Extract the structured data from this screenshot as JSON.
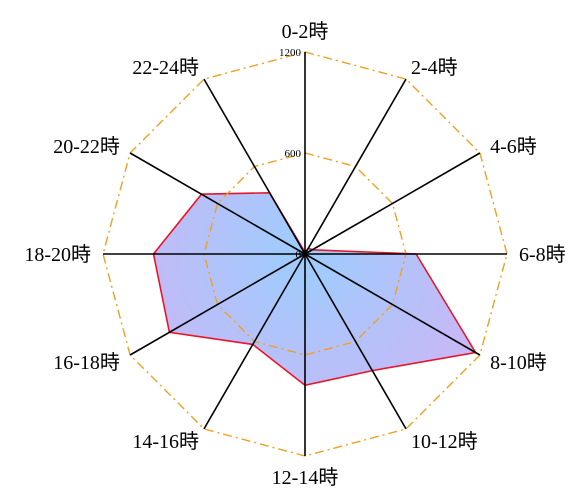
{
  "chart_data": {
    "type": "radar",
    "categories": [
      "0-2時",
      "2-4時",
      "4-6時",
      "6-8時",
      "8-10時",
      "10-12時",
      "12-14時",
      "14-16時",
      "16-18時",
      "18-20時",
      "20-22時",
      "22-24時"
    ],
    "series": [
      {
        "values": [
          10,
          40,
          50,
          660,
          1170,
          800,
          780,
          620,
          930,
          900,
          710,
          420
        ],
        "line_color": "#e8162a",
        "fill_center_color": "#9ccdfd",
        "fill_edge_color": "#c8b8f6"
      }
    ],
    "r_range": [
      0,
      1200
    ],
    "r_ticks": [
      {
        "value": 0,
        "label": "0"
      },
      {
        "value": 600,
        "label": "600"
      },
      {
        "value": 1200,
        "label": "1200"
      }
    ],
    "grid_color": "#f0a020",
    "spoke_color": "#000000"
  }
}
